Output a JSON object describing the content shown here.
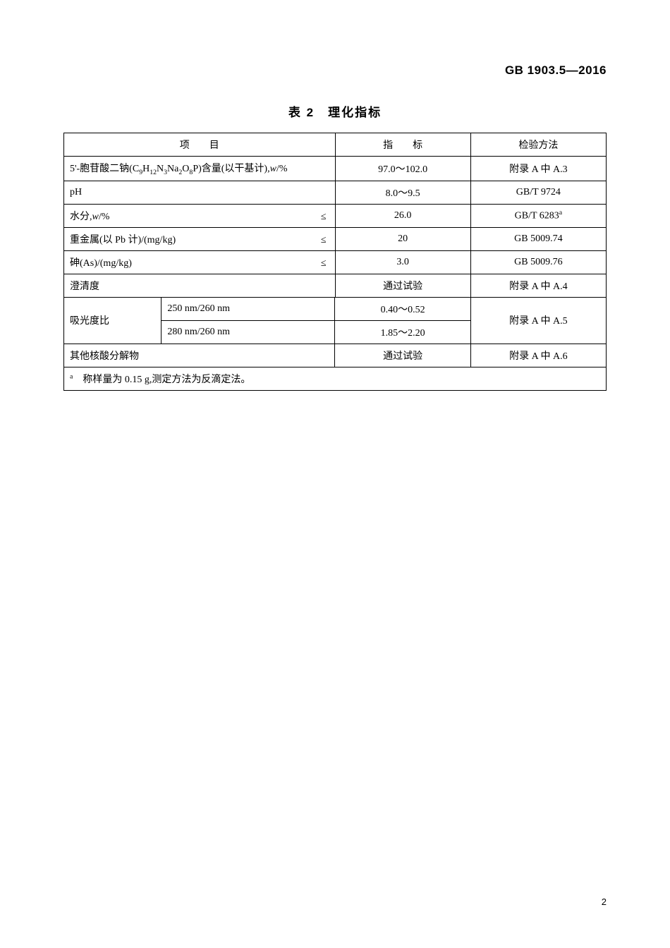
{
  "header_code": "GB 1903.5—2016",
  "table_caption": "表 2　理化指标",
  "columns": {
    "item": "项　　目",
    "value": "指　　标",
    "method": "检验方法"
  },
  "rows": {
    "r1": {
      "item_html": "5'-胞苷酸二钠(C<sub>9</sub>H<sub>12</sub>N<sub>3</sub>Na<sub>2</sub>O<sub>8</sub>P)含量(以干基计),<i>w</i>/%",
      "suffix": "",
      "value": "97.0～102.0",
      "method": "附录 A 中 A.3"
    },
    "r2": {
      "item_html": "pH",
      "suffix": "",
      "value": "8.0～9.5",
      "method": "GB/T 9724"
    },
    "r3": {
      "item_html": "水分,<i>w</i>/%",
      "suffix": "≤",
      "value": "26.0",
      "method_html": "GB/T 6283<sup>a</sup>"
    },
    "r4": {
      "item_html": "重金属(以 Pb 计)/(mg/kg)",
      "suffix": "≤",
      "value": "20",
      "method": "GB 5009.74"
    },
    "r5": {
      "item_html": "砷(As)/(mg/kg)",
      "suffix": "≤",
      "value": "3.0",
      "method": "GB 5009.76"
    },
    "r6": {
      "item_html": "澄清度",
      "suffix": "",
      "value": "通过试验",
      "method": "附录 A 中 A.4"
    },
    "abs": {
      "label": "吸光度比",
      "row_a": {
        "sub": "250 nm/260 nm",
        "value": "0.40～0.52"
      },
      "row_b": {
        "sub": "280 nm/260 nm",
        "value": "1.85～2.20"
      },
      "method": "附录 A 中 A.5"
    },
    "r9": {
      "item_html": "其他核酸分解物",
      "suffix": "",
      "value": "通过试验",
      "method": "附录 A 中 A.6"
    }
  },
  "footnote_html": "<sup>a</sup>　称样量为 0.15 g,测定方法为反滴定法。",
  "page_number": "2"
}
